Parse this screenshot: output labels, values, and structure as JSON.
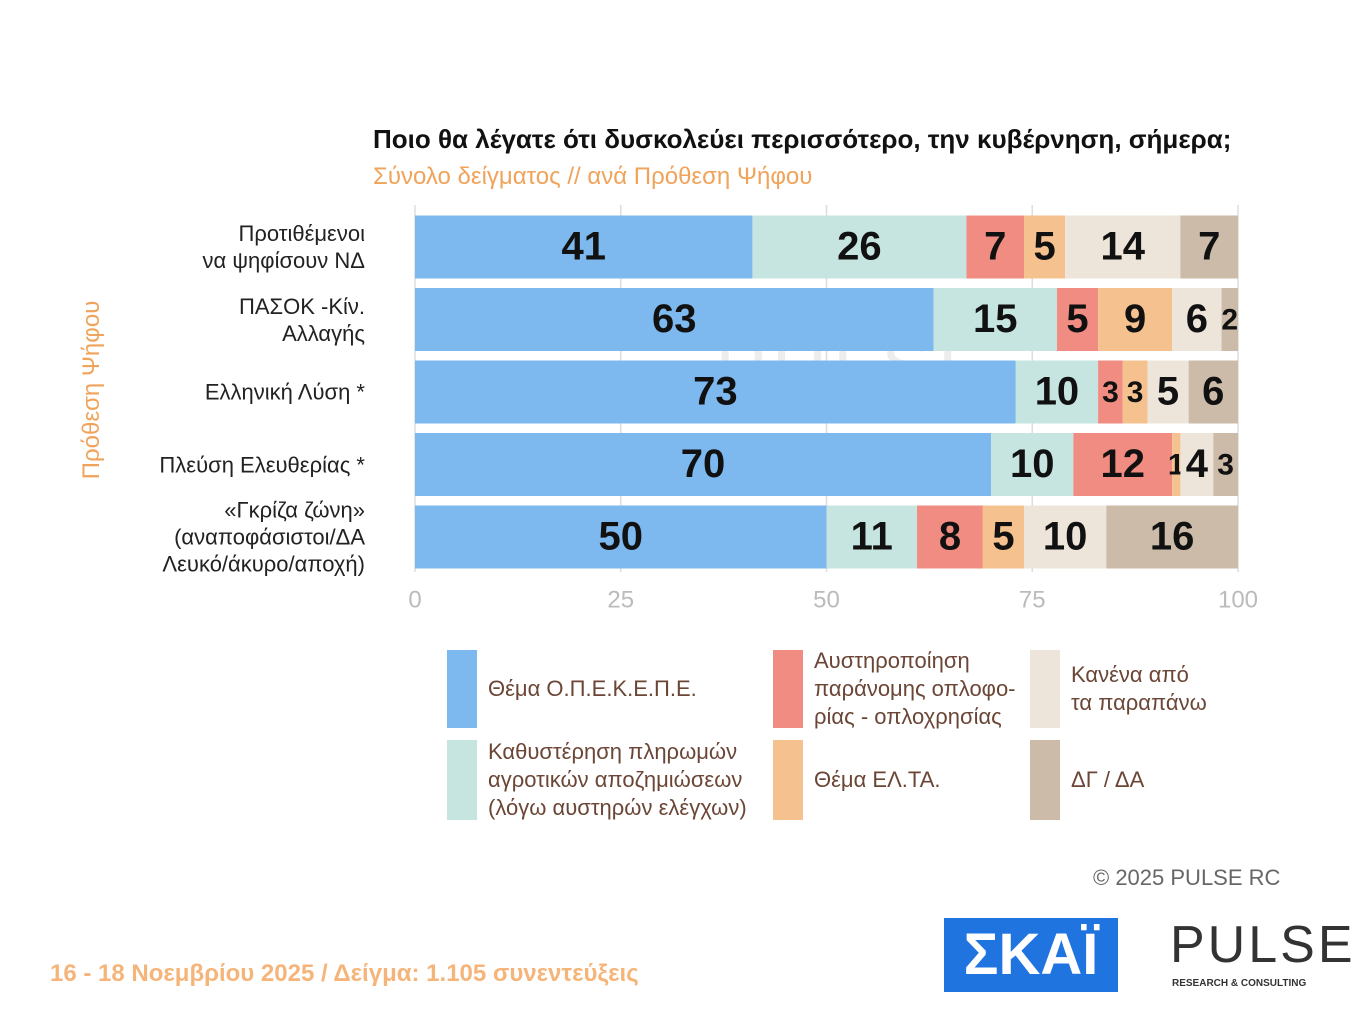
{
  "chart_data": {
    "type": "stacked-bar-horizontal",
    "title": "Ποιο θα λέγατε ότι δυσκολεύει περισσότερο, την κυβέρνηση, σήμερα;",
    "subtitle": "Σύνολο δείγματος // ανά Πρόθεση Ψήφου",
    "y_label": "Πρόθεση Ψήφου",
    "categories": [
      "Προτιθέμενοι\nνα ψηφίσουν ΝΔ",
      "ΠΑΣΟΚ -Κίν.\nΑλλαγής",
      "Ελληνική Λύση *",
      "Πλεύση Ελευθερίας *",
      "«Γκρίζα ζώνη»\n(αναποφάσιστοι/ΔΑ\nΛευκό/άκυρο/αποχή)"
    ],
    "series": [
      {
        "name": "Θέμα Ο.Π.Ε.Κ.Ε.Π.Ε.",
        "color": "#7db9ee",
        "values": [
          41,
          63,
          73,
          70,
          50
        ]
      },
      {
        "name": "Καθυστέρηση πληρωμών\nαγροτικών αποζημιώσεων\n(λόγω αυστηρών ελέγχων)",
        "color": "#c6e4e0",
        "values": [
          26,
          15,
          10,
          10,
          11
        ]
      },
      {
        "name": "Αυστηροποίηση\nπαράνομης οπλοφο-\nρίας - οπλοχρησίας",
        "color": "#f18c82",
        "values": [
          7,
          5,
          3,
          12,
          8
        ]
      },
      {
        "name": "Θέμα ΕΛ.ΤΑ.",
        "color": "#f5c28f",
        "values": [
          5,
          9,
          3,
          1,
          5
        ]
      },
      {
        "name": "Κανένα από\nτα παραπάνω",
        "color": "#ede4da",
        "values": [
          14,
          6,
          5,
          4,
          10
        ]
      },
      {
        "name": "ΔΓ / ΔΑ",
        "color": "#cbbba8",
        "values": [
          7,
          2,
          6,
          3,
          16
        ]
      }
    ],
    "xlim": [
      0,
      100
    ],
    "xticks": [
      0,
      25,
      50,
      75,
      100
    ],
    "grid": true,
    "watermark": "PULSE",
    "copyright": "©  2025  PULSE RC",
    "footer": "16 - 18 Νοεμβρίου 2025  /  Δείγμα:  1.105 συνεντεύξεις",
    "logo_left": "ΣΚΑΪ",
    "logo_right": "PULSE",
    "logo_right_sub": "RESEARCH & CONSULTING"
  }
}
